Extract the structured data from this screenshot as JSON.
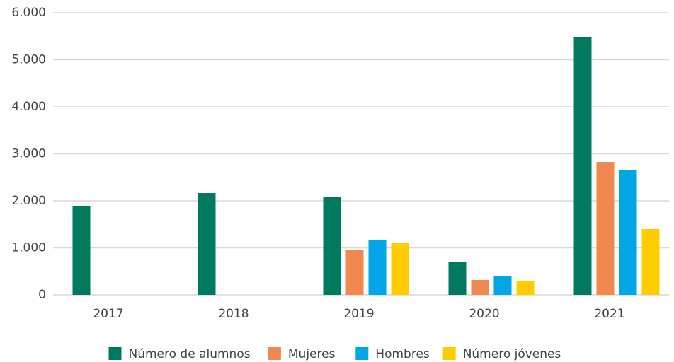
{
  "chart_data": {
    "type": "bar",
    "categories": [
      "2017",
      "2018",
      "2019",
      "2020",
      "2021"
    ],
    "series": [
      {
        "name": "Número de alumnos",
        "color": "#007a5e",
        "values": [
          1880,
          2165,
          2090,
          707,
          5474
        ]
      },
      {
        "name": "Mujeres",
        "color": "#f0884f",
        "values": [
          null,
          null,
          947,
          316,
          2827
        ]
      },
      {
        "name": "Hombres",
        "color": "#00a6e6",
        "values": [
          null,
          null,
          1158,
          406,
          2647
        ]
      },
      {
        "name": "Número jóvenes",
        "color": "#ffcc00",
        "values": [
          null,
          null,
          1098,
          301,
          1398
        ]
      }
    ],
    "ylim": [
      0,
      6000
    ],
    "yticks": [
      0,
      {
        "value": 1000,
        "label": "1.000"
      },
      {
        "value": 2000,
        "label": "2.000"
      },
      {
        "value": 3000,
        "label": "3.000"
      },
      {
        "value": 4000,
        "label": "4.000"
      },
      {
        "value": 5000,
        "label": "5.000"
      },
      {
        "value": 6000,
        "label": "6.000"
      }
    ],
    "grid": true,
    "legend": "bottom"
  }
}
